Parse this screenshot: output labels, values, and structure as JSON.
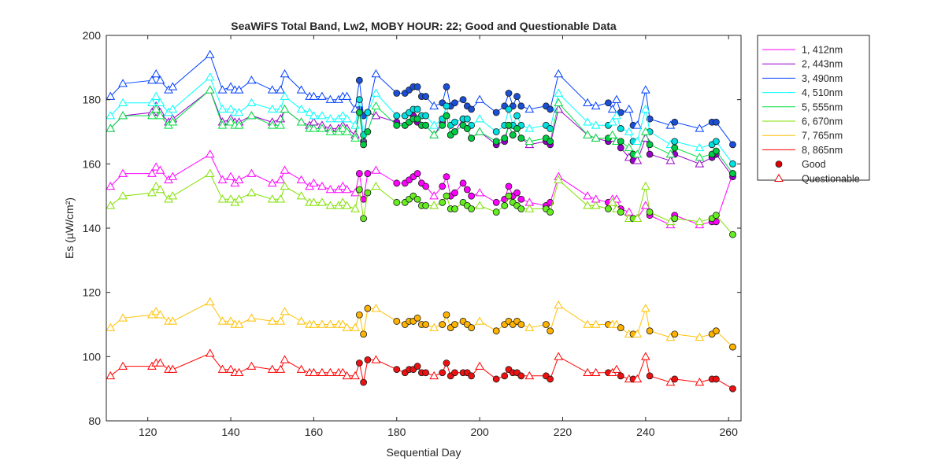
{
  "chart_data": {
    "type": "line",
    "title": "SeaWiFS Total Band,  Lw2, MOBY HOUR: 22;  Good and Questionable Data",
    "xlabel": "Sequential Day",
    "ylabel": "Es (µW/cm²)",
    "xlim": [
      110,
      263
    ],
    "ylim": [
      80,
      200
    ],
    "xticks": [
      120,
      140,
      160,
      180,
      200,
      220,
      240,
      260
    ],
    "yticks": [
      80,
      100,
      120,
      140,
      160,
      180,
      200
    ],
    "grid": false,
    "legend_position": "outside-top-right",
    "legend_markers": [
      {
        "label": "Good",
        "marker": "circle",
        "color": "#e00000"
      },
      {
        "label": "Questionable",
        "marker": "triangle",
        "color": "#e00000"
      }
    ],
    "x": [
      111,
      114,
      121,
      122,
      123,
      125,
      126,
      135,
      138,
      140,
      141,
      142,
      145,
      150,
      152,
      153,
      157,
      159,
      160,
      162,
      164,
      166,
      167,
      168,
      170,
      171,
      172,
      173,
      175,
      180,
      182,
      183,
      184,
      185,
      186,
      187,
      189,
      191,
      192,
      193,
      194,
      196,
      197,
      198,
      200,
      204,
      206,
      207,
      208,
      209,
      210,
      212,
      216,
      217,
      219,
      226,
      228,
      231,
      232,
      233,
      234,
      236,
      237,
      238,
      240,
      241,
      246,
      247,
      253,
      256,
      257,
      261
    ],
    "quality": [
      "Q",
      "Q",
      "Q",
      "Q",
      "Q",
      "Q",
      "Q",
      "Q",
      "Q",
      "Q",
      "Q",
      "Q",
      "Q",
      "Q",
      "Q",
      "Q",
      "Q",
      "Q",
      "Q",
      "Q",
      "Q",
      "Q",
      "Q",
      "Q",
      "Q",
      "G",
      "G",
      "G",
      "Q",
      "G",
      "G",
      "G",
      "G",
      "G",
      "G",
      "G",
      "Q",
      "G",
      "G",
      "G",
      "G",
      "G",
      "G",
      "G",
      "Q",
      "G",
      "G",
      "G",
      "G",
      "G",
      "G",
      "Q",
      "G",
      "G",
      "Q",
      "Q",
      "Q",
      "G",
      "Q",
      "Q",
      "G",
      "Q",
      "G",
      "Q",
      "Q",
      "G",
      "Q",
      "G",
      "Q",
      "G",
      "G",
      "G"
    ],
    "series": [
      {
        "name": "1, 412nm",
        "color": "#ff00ff",
        "good_fill": "#ff00ff",
        "values": [
          153,
          157,
          157,
          159,
          158,
          155,
          156,
          163,
          155,
          156,
          154,
          155,
          157,
          154,
          155,
          158,
          155,
          153,
          154,
          153,
          152,
          152,
          153,
          152,
          151,
          157,
          149,
          157,
          158,
          154,
          154,
          155,
          156,
          157,
          154,
          153,
          150,
          153,
          156,
          150,
          151,
          154,
          152,
          150,
          151,
          148,
          149,
          153,
          150,
          151,
          149,
          148,
          147,
          148,
          156,
          150,
          149,
          148,
          149,
          149,
          146,
          145,
          143,
          143,
          147,
          144,
          141,
          144,
          141,
          142,
          142,
          157
        ]
      },
      {
        "name": "2, 443nm",
        "color": "#9900cc",
        "good_fill": "#9900cc",
        "values": [
          171,
          175,
          176,
          178,
          176,
          173,
          174,
          183,
          173,
          174,
          173,
          173,
          175,
          173,
          174,
          177,
          173,
          172,
          173,
          172,
          171,
          171,
          172,
          171,
          169,
          177,
          167,
          176,
          175,
          173,
          172,
          173,
          175,
          173,
          172,
          172,
          169,
          173,
          175,
          169,
          170,
          174,
          171,
          168,
          170,
          166,
          167,
          172,
          169,
          171,
          168,
          166,
          167,
          166,
          177,
          169,
          168,
          167,
          168,
          167,
          165,
          162,
          161,
          161,
          168,
          163,
          161,
          163,
          160,
          162,
          163,
          156
        ]
      },
      {
        "name": "3, 490nm",
        "color": "#0040ff",
        "good_fill": "#1a4fd6",
        "values": [
          181,
          185,
          186,
          188,
          186,
          183,
          184,
          194,
          183,
          184,
          183,
          183,
          186,
          183,
          183,
          188,
          183,
          181,
          181,
          181,
          180,
          180,
          181,
          181,
          177,
          186,
          175,
          176,
          188,
          182,
          182,
          183,
          184,
          184,
          181,
          181,
          178,
          179,
          184,
          178,
          179,
          180,
          178,
          177,
          180,
          176,
          178,
          182,
          178,
          181,
          178,
          177,
          178,
          177,
          188,
          179,
          178,
          179,
          177,
          180,
          176,
          177,
          172,
          172,
          183,
          174,
          172,
          173,
          171,
          173,
          173,
          166
        ]
      },
      {
        "name": "4, 510nm",
        "color": "#00ffff",
        "good_fill": "#00e0e0",
        "values": [
          175,
          179,
          179,
          181,
          179,
          176,
          177,
          187,
          177,
          177,
          176,
          176,
          179,
          177,
          177,
          181,
          177,
          176,
          175,
          175,
          174,
          174,
          175,
          174,
          172,
          180,
          169,
          176,
          182,
          175,
          175,
          176,
          177,
          177,
          175,
          175,
          172,
          174,
          178,
          172,
          173,
          174,
          174,
          172,
          174,
          170,
          172,
          177,
          172,
          175,
          172,
          171,
          172,
          171,
          182,
          173,
          172,
          172,
          173,
          175,
          171,
          170,
          167,
          167,
          177,
          170,
          166,
          167,
          165,
          166,
          167,
          160
        ]
      },
      {
        "name": "5, 555nm",
        "color": "#00e040",
        "good_fill": "#00cc44",
        "values": [
          171,
          175,
          175,
          177,
          175,
          172,
          173,
          183,
          172,
          173,
          172,
          172,
          175,
          172,
          172,
          177,
          173,
          171,
          171,
          171,
          170,
          170,
          171,
          170,
          168,
          176,
          166,
          170,
          178,
          172,
          172,
          173,
          174,
          174,
          172,
          172,
          169,
          172,
          175,
          169,
          170,
          172,
          171,
          168,
          170,
          167,
          168,
          172,
          169,
          171,
          168,
          167,
          168,
          167,
          179,
          169,
          168,
          168,
          169,
          167,
          167,
          165,
          163,
          163,
          170,
          166,
          163,
          165,
          162,
          163,
          164,
          157
        ]
      },
      {
        "name": "6, 670nm",
        "color": "#80e000",
        "good_fill": "#66ee22",
        "values": [
          147,
          150,
          151,
          153,
          152,
          149,
          150,
          157,
          149,
          149,
          148,
          149,
          151,
          149,
          149,
          153,
          150,
          148,
          148,
          148,
          147,
          147,
          148,
          147,
          146,
          152,
          143,
          151,
          153,
          148,
          148,
          149,
          150,
          149,
          147,
          147,
          147,
          148,
          150,
          146,
          146,
          148,
          147,
          146,
          147,
          145,
          147,
          150,
          148,
          147,
          146,
          146,
          146,
          145,
          155,
          147,
          147,
          146,
          148,
          146,
          145,
          143,
          143,
          143,
          153,
          145,
          142,
          143,
          142,
          143,
          144,
          138
        ]
      },
      {
        "name": "7, 765nm",
        "color": "#ffc000",
        "good_fill": "#ffb300",
        "values": [
          109,
          112,
          113,
          114,
          113,
          111,
          111,
          117,
          111,
          111,
          110,
          110,
          112,
          111,
          111,
          114,
          111,
          110,
          110,
          110,
          110,
          110,
          110,
          109,
          109,
          113,
          107,
          115,
          115,
          111,
          110,
          111,
          111,
          112,
          110,
          110,
          109,
          110,
          113,
          109,
          110,
          111,
          110,
          109,
          111,
          108,
          110,
          111,
          110,
          111,
          110,
          109,
          110,
          108,
          116,
          110,
          110,
          110,
          110,
          110,
          109,
          107,
          107,
          107,
          115,
          108,
          106,
          107,
          106,
          107,
          108,
          103
        ]
      },
      {
        "name": "8, 865nm",
        "color": "#ff0000",
        "good_fill": "#ee1111",
        "values": [
          94,
          97,
          97,
          98,
          98,
          96,
          96,
          101,
          96,
          96,
          95,
          95,
          97,
          96,
          96,
          99,
          96,
          95,
          95,
          95,
          95,
          95,
          95,
          94,
          94,
          98,
          92,
          99,
          99,
          96,
          95,
          96,
          96,
          97,
          95,
          95,
          94,
          95,
          98,
          94,
          95,
          95,
          95,
          94,
          97,
          93,
          94,
          96,
          95,
          95,
          94,
          94,
          94,
          93,
          100,
          95,
          95,
          95,
          95,
          96,
          94,
          93,
          93,
          93,
          100,
          94,
          92,
          93,
          92,
          93,
          93,
          90
        ]
      }
    ]
  }
}
